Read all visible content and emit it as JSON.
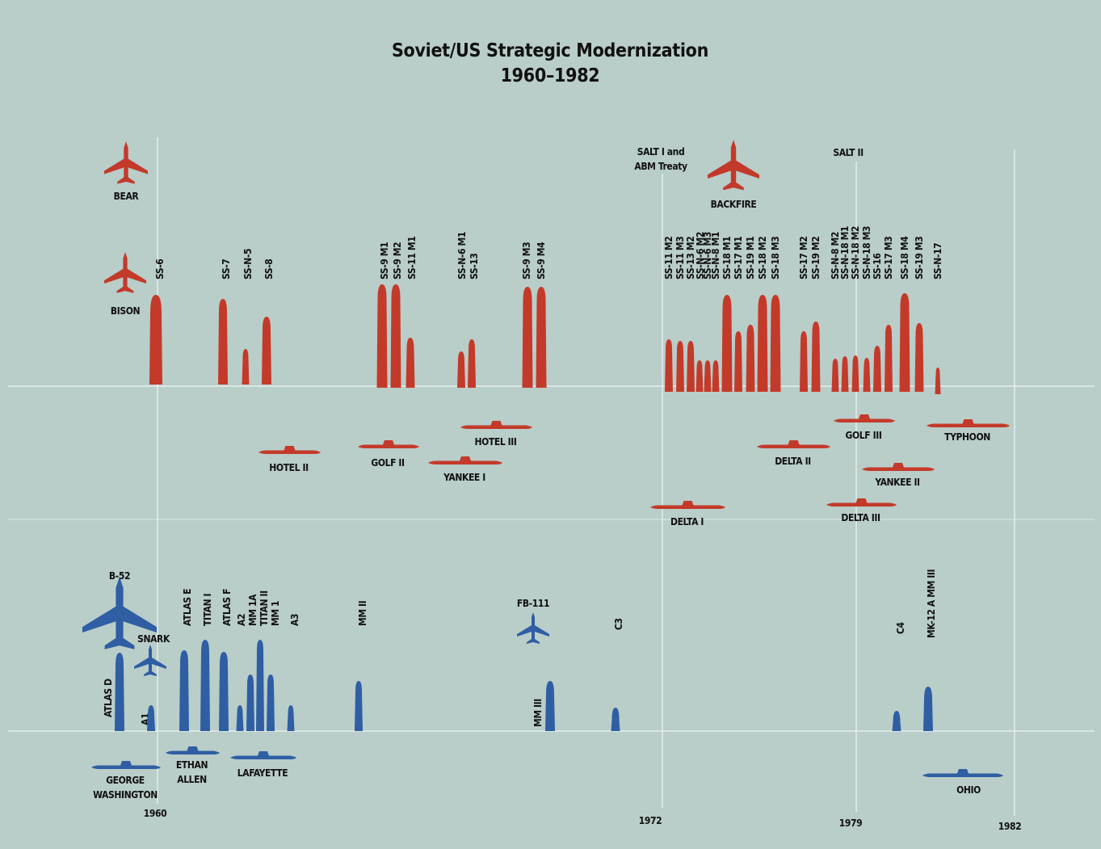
{
  "title": [
    "Soviet/US Strategic Modernization",
    "1960–1982"
  ],
  "treaties": [
    [
      "SALT I and",
      "ABM Treaty"
    ],
    [
      "SALT II"
    ]
  ],
  "soviet": {
    "bombers": [
      "BEAR",
      "BISON",
      "BACKFIRE"
    ],
    "missiles": [
      "SS-6",
      "SS-7",
      "SS-N-5",
      "SS-8",
      "SS-9 M1",
      "SS-9 M2",
      "SS-11 M1",
      "SS-N-6 M1",
      "SS-13",
      "SS-9 M3",
      "SS-9 M4",
      "SS-11 M2",
      "SS-11 M3",
      "SS-13 M2",
      "SS-N-6 M2",
      "SS-N-6 M3",
      "SS-N-8 M1",
      "SS-18 M1",
      "SS-17 M1",
      "SS-19 M1",
      "SS-18 M2",
      "SS-18 M3",
      "SS-17 M2",
      "SS-19 M2",
      "SS-N-8 M2",
      "SS-N-18 M1",
      "SS-N-18 M2",
      "SS-N-18 M3",
      "SS-16",
      "SS-17 M3",
      "SS-18 M4",
      "SS-19 M3",
      "SS-N-17"
    ],
    "submarines": [
      [
        "HOTEL II"
      ],
      [
        "GOLF II"
      ],
      [
        "YANKEE I"
      ],
      [
        "HOTEL III"
      ],
      [
        "DELTA I"
      ],
      [
        "DELTA II"
      ],
      [
        "GOLF III"
      ],
      [
        "TYPHOON"
      ],
      [
        "YANKEE II"
      ],
      [
        "DELTA III"
      ]
    ]
  },
  "us": {
    "bombers": [
      "B-52",
      "SNARK",
      "FB-111"
    ],
    "missiles": [
      "ATLAS D",
      "A1",
      "ATLAS E",
      "TITAN I",
      "ATLAS F",
      "A2",
      "MM 1A",
      "TITAN II",
      "MM 1",
      "A3",
      "MM II",
      "MM III",
      "C3",
      "C4",
      "MK-12 A MM III"
    ],
    "submarines": [
      [
        "GEORGE",
        "WASHINGTON"
      ],
      [
        "ETHAN",
        "ALLEN"
      ],
      [
        "LAFAYETTE"
      ],
      [
        "OHIO"
      ]
    ]
  },
  "years": [
    "1960",
    "1972",
    "1979",
    "1982"
  ]
}
